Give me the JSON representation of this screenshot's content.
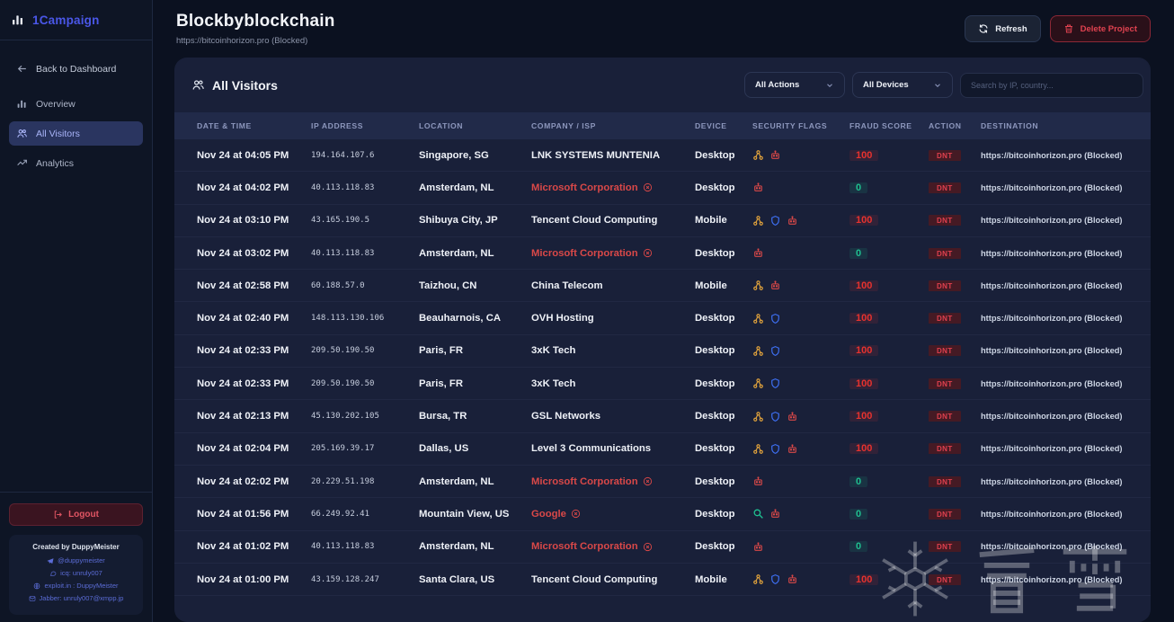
{
  "sidebar": {
    "logo_label": "1Campaign",
    "back_label": "Back to Dashboard",
    "items": [
      {
        "label": "Overview",
        "icon": "bar-chart-icon",
        "active": false
      },
      {
        "label": "All Visitors",
        "icon": "users-icon",
        "active": true
      },
      {
        "label": "Analytics",
        "icon": "trend-icon",
        "active": false
      }
    ],
    "logout_label": "Logout",
    "credits": {
      "title": "Created by DuppyMeister",
      "lines": [
        {
          "icon": "telegram-icon",
          "text": "@duppymeister"
        },
        {
          "icon": "chat-icon",
          "text": "icq: unruly007"
        },
        {
          "icon": "globe-icon",
          "text": "exploit.in : DuppyMeister"
        },
        {
          "icon": "jabber-icon",
          "text": "Jabber: unruly007@xmpp.jp"
        }
      ]
    }
  },
  "header": {
    "title": "Blockbyblockchain",
    "subtitle": "https://bitcoinhorizon.pro (Blocked)",
    "refresh_label": "Refresh",
    "delete_label": "Delete Project"
  },
  "panel": {
    "title": "All Visitors",
    "filters": {
      "actions_value": "All Actions",
      "devices_value": "All Devices",
      "search_placeholder": "Search by IP, country..."
    }
  },
  "table": {
    "columns": [
      "DATE & TIME",
      "IP ADDRESS",
      "LOCATION",
      "COMPANY / ISP",
      "DEVICE",
      "SECURITY FLAGS",
      "FRAUD SCORE",
      "ACTION",
      "DESTINATION"
    ],
    "rows": [
      {
        "datetime": "Nov 24 at 04:05 PM",
        "ip": "194.164.107.6",
        "location": "Singapore, SG",
        "company": "LNK SYSTEMS MUNTENIA",
        "company_blocked": false,
        "device": "Desktop",
        "flags": [
          "proxy-icon",
          "bot-icon"
        ],
        "fraud_score": 100,
        "action": "DNT",
        "destination": "https://bitcoinhorizon.pro (Blocked)"
      },
      {
        "datetime": "Nov 24 at 04:02 PM",
        "ip": "40.113.118.83",
        "location": "Amsterdam, NL",
        "company": "Microsoft Corporation",
        "company_blocked": true,
        "device": "Desktop",
        "flags": [
          "bot-icon"
        ],
        "fraud_score": 0,
        "action": "DNT",
        "destination": "https://bitcoinhorizon.pro (Blocked)"
      },
      {
        "datetime": "Nov 24 at 03:10 PM",
        "ip": "43.165.190.5",
        "location": "Shibuya City, JP",
        "company": "Tencent Cloud Computing",
        "company_blocked": false,
        "device": "Mobile",
        "flags": [
          "proxy-icon",
          "shield-icon",
          "bot-icon"
        ],
        "fraud_score": 100,
        "action": "DNT",
        "destination": "https://bitcoinhorizon.pro (Blocked)"
      },
      {
        "datetime": "Nov 24 at 03:02 PM",
        "ip": "40.113.118.83",
        "location": "Amsterdam, NL",
        "company": "Microsoft Corporation",
        "company_blocked": true,
        "device": "Desktop",
        "flags": [
          "bot-icon"
        ],
        "fraud_score": 0,
        "action": "DNT",
        "destination": "https://bitcoinhorizon.pro (Blocked)"
      },
      {
        "datetime": "Nov 24 at 02:58 PM",
        "ip": "60.188.57.0",
        "location": "Taizhou, CN",
        "company": "China Telecom",
        "company_blocked": false,
        "device": "Mobile",
        "flags": [
          "proxy-icon",
          "bot-icon"
        ],
        "fraud_score": 100,
        "action": "DNT",
        "destination": "https://bitcoinhorizon.pro (Blocked)"
      },
      {
        "datetime": "Nov 24 at 02:40 PM",
        "ip": "148.113.130.106",
        "location": "Beauharnois, CA",
        "company": "OVH Hosting",
        "company_blocked": false,
        "device": "Desktop",
        "flags": [
          "proxy-icon",
          "shield-icon"
        ],
        "fraud_score": 100,
        "action": "DNT",
        "destination": "https://bitcoinhorizon.pro (Blocked)"
      },
      {
        "datetime": "Nov 24 at 02:33 PM",
        "ip": "209.50.190.50",
        "location": "Paris, FR",
        "company": "3xK Tech",
        "company_blocked": false,
        "device": "Desktop",
        "flags": [
          "proxy-icon",
          "shield-icon"
        ],
        "fraud_score": 100,
        "action": "DNT",
        "destination": "https://bitcoinhorizon.pro (Blocked)"
      },
      {
        "datetime": "Nov 24 at 02:33 PM",
        "ip": "209.50.190.50",
        "location": "Paris, FR",
        "company": "3xK Tech",
        "company_blocked": false,
        "device": "Desktop",
        "flags": [
          "proxy-icon",
          "shield-icon"
        ],
        "fraud_score": 100,
        "action": "DNT",
        "destination": "https://bitcoinhorizon.pro (Blocked)"
      },
      {
        "datetime": "Nov 24 at 02:13 PM",
        "ip": "45.130.202.105",
        "location": "Bursa, TR",
        "company": "GSL Networks",
        "company_blocked": false,
        "device": "Desktop",
        "flags": [
          "proxy-icon",
          "shield-icon",
          "bot-icon"
        ],
        "fraud_score": 100,
        "action": "DNT",
        "destination": "https://bitcoinhorizon.pro (Blocked)"
      },
      {
        "datetime": "Nov 24 at 02:04 PM",
        "ip": "205.169.39.17",
        "location": "Dallas, US",
        "company": "Level 3 Communications",
        "company_blocked": false,
        "device": "Desktop",
        "flags": [
          "proxy-icon",
          "shield-icon",
          "bot-icon"
        ],
        "fraud_score": 100,
        "action": "DNT",
        "destination": "https://bitcoinhorizon.pro (Blocked)"
      },
      {
        "datetime": "Nov 24 at 02:02 PM",
        "ip": "20.229.51.198",
        "location": "Amsterdam, NL",
        "company": "Microsoft Corporation",
        "company_blocked": true,
        "device": "Desktop",
        "flags": [
          "bot-icon"
        ],
        "fraud_score": 0,
        "action": "DNT",
        "destination": "https://bitcoinhorizon.pro (Blocked)"
      },
      {
        "datetime": "Nov 24 at 01:56 PM",
        "ip": "66.249.92.41",
        "location": "Mountain View, US",
        "company": "Google",
        "company_blocked": true,
        "device": "Desktop",
        "flags": [
          "crawler-icon",
          "bot-icon"
        ],
        "fraud_score": 0,
        "action": "DNT",
        "destination": "https://bitcoinhorizon.pro (Blocked)"
      },
      {
        "datetime": "Nov 24 at 01:02 PM",
        "ip": "40.113.118.83",
        "location": "Amsterdam, NL",
        "company": "Microsoft Corporation",
        "company_blocked": true,
        "device": "Desktop",
        "flags": [
          "bot-icon"
        ],
        "fraud_score": 0,
        "action": "DNT",
        "destination": "https://bitcoinhorizon.pro (Blocked)"
      },
      {
        "datetime": "Nov 24 at 01:00 PM",
        "ip": "43.159.128.247",
        "location": "Santa Clara, US",
        "company": "Tencent Cloud Computing",
        "company_blocked": false,
        "device": "Mobile",
        "flags": [
          "proxy-icon",
          "shield-icon",
          "bot-icon"
        ],
        "fraud_score": 100,
        "action": "DNT",
        "destination": "https://bitcoinhorizon.pro (Blocked)"
      }
    ]
  },
  "watermark": {
    "text": "看雪"
  },
  "colors": {
    "accent": "#4a57e8",
    "danger": "#e0414e",
    "success": "#1fbf8f",
    "warning": "#e0a23c",
    "info": "#3d6ef0"
  }
}
